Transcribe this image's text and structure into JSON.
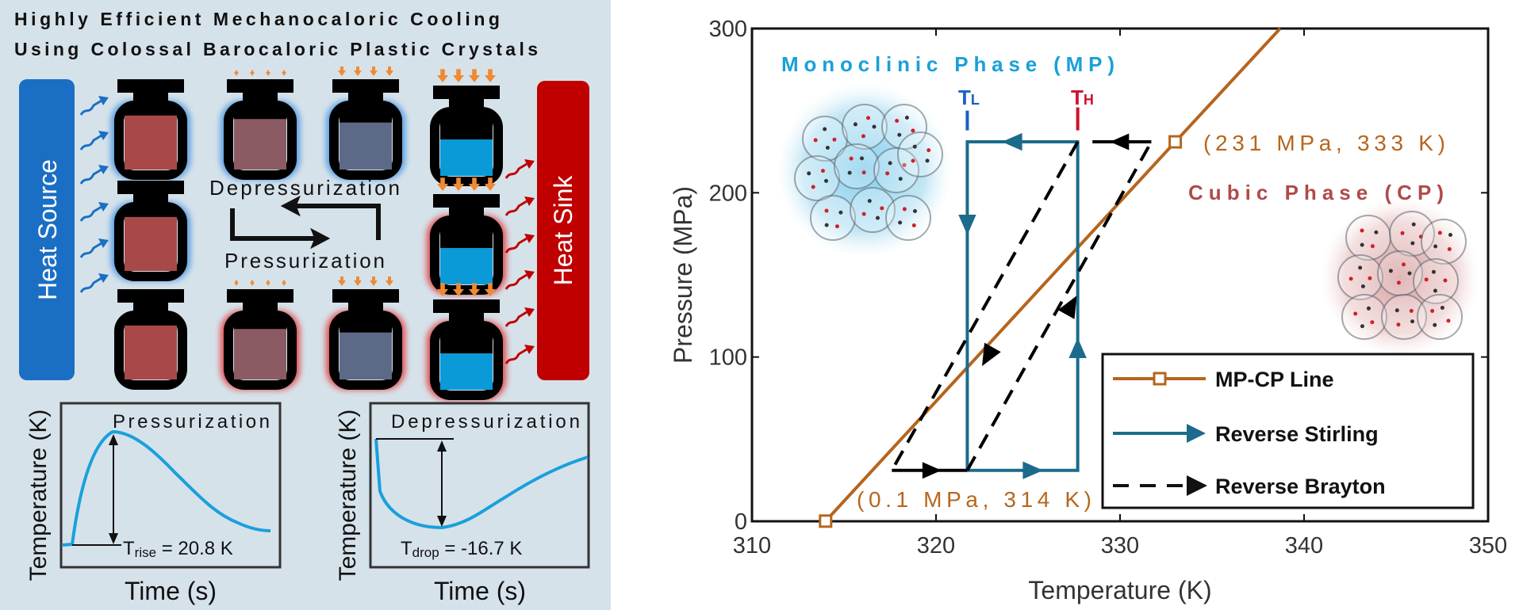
{
  "left_panel": {
    "title_line1": "Highly Efficient Mechanocaloric Cooling",
    "title_line2": "Using Colossal Barocaloric Plastic Crystals",
    "heat_source": "Heat Source",
    "heat_sink": "Heat Sink",
    "depressurization": "Depressurization",
    "pressurization": "Pressurization",
    "colors": {
      "background": "#d6e2ea",
      "heat_source": "#1a6fc4",
      "heat_sink": "#c00000",
      "arrow_orange": "#f08a30",
      "curve": "#1aa0dc"
    },
    "plot1": {
      "title": "Pressurization",
      "ylabel": "Temperature (K)",
      "xlabel": "Time (s)",
      "delta_symbol": "T",
      "delta_sub": "rise",
      "delta_value": " = 20.8 K"
    },
    "plot2": {
      "title": "Depressurization",
      "ylabel": "Temperature (K)",
      "xlabel": "Time (s)",
      "delta_symbol": "T",
      "delta_sub": "drop",
      "delta_value": " = -16.7 K"
    }
  },
  "chart_data": {
    "type": "line",
    "title": "",
    "xlabel": "Temperature (K)",
    "ylabel": "Pressure (MPa)",
    "xlim": [
      310,
      350
    ],
    "ylim": [
      0,
      300
    ],
    "xticks": [
      310,
      320,
      330,
      340,
      350
    ],
    "yticks": [
      0,
      100,
      200,
      300
    ],
    "grid": false,
    "legend_position": "bottom-right",
    "series": [
      {
        "name": "MP-CP Line",
        "color": "#b5651d",
        "style": "solid-square-markers",
        "points": [
          [
            314,
            0.1
          ],
          [
            333,
            231
          ],
          [
            338.7,
            300
          ]
        ],
        "markers": [
          [
            314,
            0.1
          ],
          [
            333,
            231
          ]
        ]
      },
      {
        "name": "Reverse Stirling",
        "color": "#1b6b8c",
        "style": "solid-arrows",
        "points": [
          [
            321.7,
            31
          ],
          [
            327.7,
            31
          ],
          [
            327.7,
            231
          ],
          [
            321.7,
            231
          ],
          [
            321.7,
            31
          ]
        ]
      },
      {
        "name": "Reverse Brayton",
        "color": "#000000",
        "style": "dashed-arrows",
        "segments": [
          [
            [
              331.7,
              231
            ],
            [
              328.5,
              231
            ]
          ],
          [
            [
              327.7,
              231
            ],
            [
              317.6,
              31
            ]
          ],
          [
            [
              317.6,
              31
            ],
            [
              321.7,
              31
            ]
          ],
          [
            [
              321.7,
              31
            ],
            [
              331.7,
              231
            ]
          ]
        ]
      }
    ],
    "annotations": {
      "mp_label": "Monoclinic Phase (MP)",
      "cp_label": "Cubic Phase (CP)",
      "point_high": "(231 MPa, 333 K)",
      "point_low": "(0.1 MPa, 314 K)",
      "tl_main": "T",
      "tl_sub": "L",
      "tl_value": 321.7,
      "th_main": "T",
      "th_sub": "H",
      "th_value": 327.7
    },
    "colors": {
      "mp": "#1aa0d8",
      "cp": "#b04a4a",
      "point_label": "#b8651c",
      "tl": "#1a5fc0",
      "th": "#d0102a"
    }
  }
}
